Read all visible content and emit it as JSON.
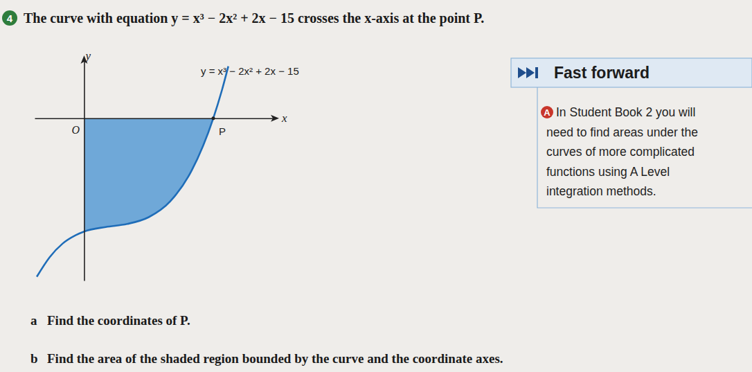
{
  "question": {
    "number": "4",
    "stem": "The curve with equation y = x³ − 2x² + 2x − 15 crosses the x-axis at the point P."
  },
  "chart_data": {
    "type": "line",
    "title": "y = x³ − 2x² + 2x − 15",
    "x": [
      -1.1,
      -0.8,
      -0.5,
      -0.2,
      0,
      0.5,
      1,
      1.5,
      2,
      2.5,
      3,
      3.2,
      3.35
    ],
    "values": [
      -21.0,
      -18.4,
      -16.6,
      -15.5,
      -15,
      -14.4,
      -14,
      -13.1,
      -11,
      -6.9,
      0,
      3.7,
      6.9
    ],
    "color": "#1f6db8",
    "xlim": [
      -1.15,
      4.4
    ],
    "ylim": [
      -21.5,
      7.6
    ],
    "xlabel": "x",
    "ylabel": "y",
    "origin_label": "O",
    "annotations": [
      {
        "text": "P",
        "x": 3,
        "y": 0
      }
    ],
    "shade": {
      "from": 0,
      "to": 3
    },
    "tick_labels": false
  },
  "fast_forward": {
    "title": "Fast forward",
    "badge": "A",
    "lines": [
      "In Student Book 2 you will",
      "need to find areas under the",
      "curves of more complicated",
      "functions using A Level",
      "integration methods."
    ]
  },
  "parts": [
    {
      "label": "a",
      "text": "Find the coordinates of P."
    },
    {
      "label": "b",
      "text": "Find the area of the shaded region bounded by the curve and the coordinate axes."
    }
  ]
}
